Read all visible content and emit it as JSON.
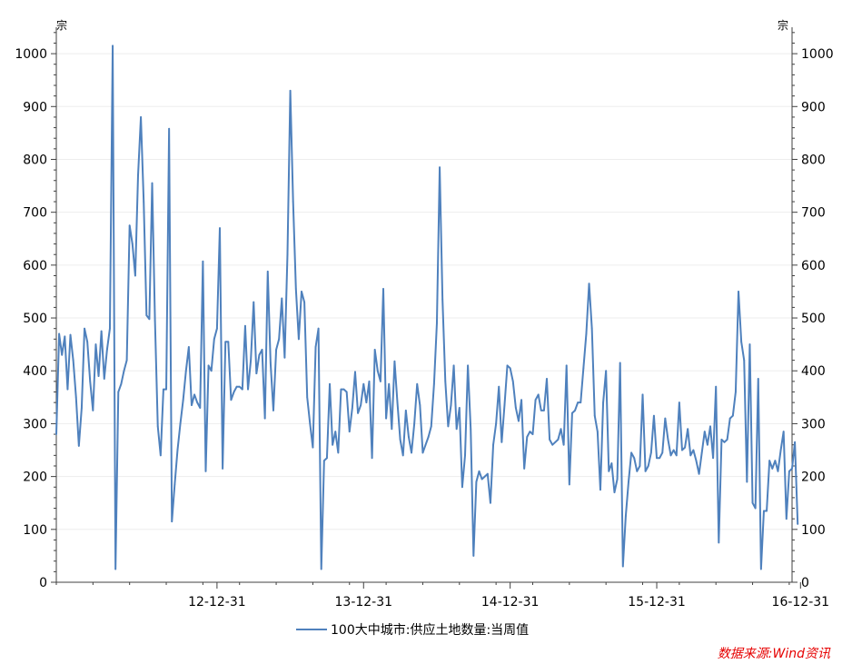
{
  "chart_data": {
    "type": "line",
    "title": "",
    "xlabel": "",
    "ylabel": "宗",
    "y2label": "宗",
    "ylim": [
      0,
      1050
    ],
    "yticks": [
      0,
      100,
      200,
      300,
      400,
      500,
      600,
      700,
      800,
      900,
      1000
    ],
    "x_tick_labels": [
      "12-12-31",
      "13-12-31",
      "14-12-31",
      "15-12-31",
      "16-12-31"
    ],
    "x_tick_positions": [
      57,
      109,
      161,
      213,
      264
    ],
    "x_range": [
      0,
      261
    ],
    "legend_position": "bottom",
    "grid": true,
    "series": [
      {
        "name": "100大中城市:供应土地数量:当周值",
        "color": "#4f81bd",
        "values": [
          280,
          470,
          430,
          465,
          365,
          468,
          420,
          350,
          258,
          330,
          480,
          455,
          380,
          325,
          450,
          390,
          475,
          385,
          440,
          480,
          1015,
          25,
          360,
          375,
          400,
          420,
          675,
          640,
          580,
          770,
          880,
          720,
          505,
          498,
          755,
          495,
          295,
          240,
          365,
          365,
          858,
          115,
          185,
          250,
          300,
          345,
          400,
          445,
          335,
          355,
          340,
          330,
          607,
          210,
          410,
          400,
          460,
          480,
          670,
          215,
          455,
          455,
          345,
          360,
          370,
          370,
          365,
          485,
          365,
          420,
          530,
          395,
          430,
          440,
          310,
          588,
          415,
          325,
          440,
          460,
          537,
          425,
          620,
          930,
          720,
          555,
          460,
          550,
          530,
          350,
          300,
          255,
          445,
          480,
          25,
          230,
          235,
          375,
          260,
          285,
          245,
          365,
          365,
          360,
          285,
          330,
          398,
          320,
          335,
          375,
          340,
          380,
          235,
          440,
          400,
          380,
          555,
          310,
          375,
          290,
          418,
          340,
          270,
          240,
          325,
          275,
          245,
          300,
          375,
          335,
          245,
          260,
          275,
          295,
          375,
          490,
          785,
          535,
          380,
          295,
          335,
          410,
          290,
          330,
          180,
          240,
          410,
          290,
          50,
          190,
          210,
          195,
          200,
          205,
          150,
          260,
          300,
          370,
          265,
          335,
          410,
          405,
          380,
          330,
          305,
          345,
          215,
          275,
          285,
          280,
          345,
          355,
          325,
          325,
          385,
          270,
          260,
          265,
          270,
          290,
          260,
          410,
          185,
          320,
          325,
          340,
          340,
          405,
          470,
          565,
          480,
          315,
          285,
          175,
          340,
          400,
          210,
          225,
          170,
          195,
          415,
          30,
          125,
          190,
          245,
          235,
          210,
          220,
          355,
          210,
          220,
          245,
          315,
          235,
          235,
          245,
          310,
          270,
          240,
          250,
          240,
          340,
          250,
          255,
          290,
          240,
          250,
          230,
          205,
          245,
          285,
          260,
          295,
          235,
          370,
          75,
          270,
          265,
          270,
          310,
          315,
          360,
          550,
          455,
          420,
          190,
          450,
          150,
          140,
          385,
          25,
          135,
          135,
          230,
          215,
          230,
          210,
          250,
          285,
          120,
          210,
          215,
          265,
          110
        ]
      }
    ]
  },
  "source": "数据来源:Wind资讯"
}
